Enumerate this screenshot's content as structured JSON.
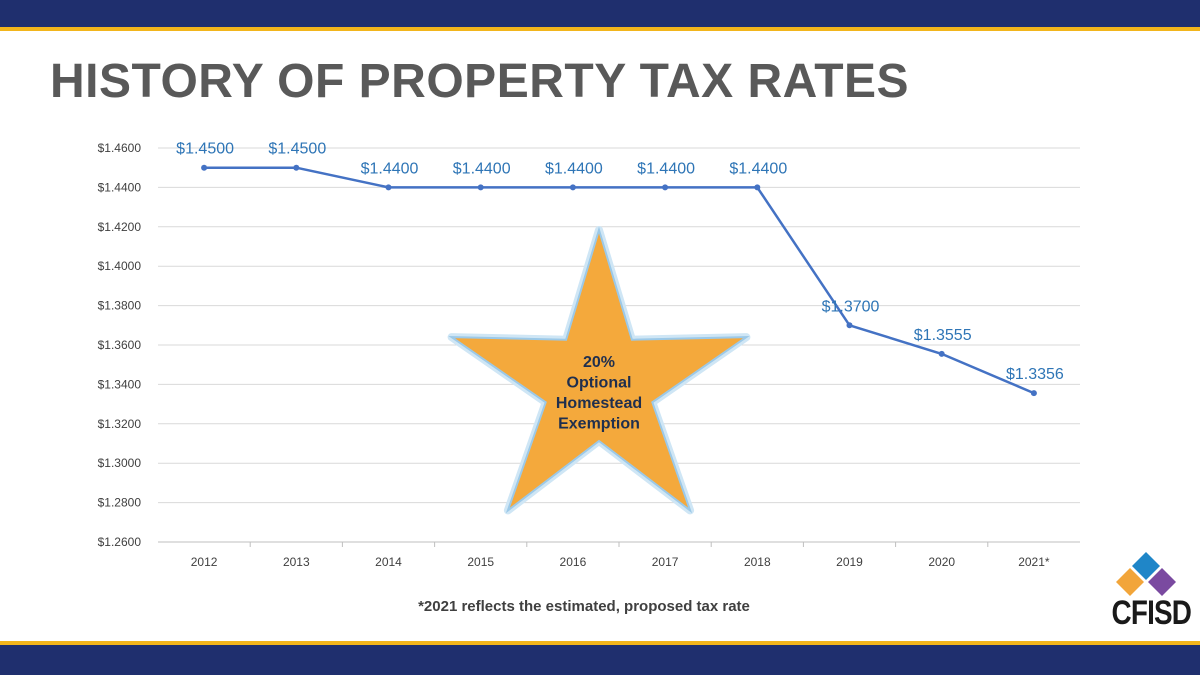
{
  "title": "HISTORY OF PROPERTY TAX RATES",
  "footnote": "*2021 reflects the estimated, proposed tax rate",
  "annotation": {
    "lines": [
      "20%",
      "Optional",
      "Homestead",
      "Exemption"
    ]
  },
  "logo": {
    "text": "CFISD"
  },
  "colors": {
    "band": "#1f2f6e",
    "accent": "#f2b51c",
    "line": "#4472c4",
    "label": "#2e75b6",
    "star": "#f4a93c"
  },
  "chart_data": {
    "type": "line",
    "title": "",
    "xlabel": "",
    "ylabel": "",
    "ylim": [
      1.26,
      1.46
    ],
    "y_ticks": [
      "$1.2600",
      "$1.2800",
      "$1.3000",
      "$1.3200",
      "$1.3400",
      "$1.3600",
      "$1.3800",
      "$1.4000",
      "$1.4200",
      "$1.4400",
      "$1.4600"
    ],
    "categories": [
      "2012",
      "2013",
      "2014",
      "2015",
      "2016",
      "2017",
      "2018",
      "2019",
      "2020",
      "2021*"
    ],
    "series": [
      {
        "values": [
          1.45,
          1.45,
          1.44,
          1.44,
          1.44,
          1.44,
          1.44,
          1.37,
          1.3555,
          1.3356
        ],
        "data_labels": [
          "$1.4500",
          "$1.4500",
          "$1.4400",
          "$1.4400",
          "$1.4400",
          "$1.4400",
          "$1.4400",
          "$1.3700",
          "$1.3555",
          "$1.3356"
        ]
      }
    ],
    "grid": true,
    "legend": "none"
  }
}
